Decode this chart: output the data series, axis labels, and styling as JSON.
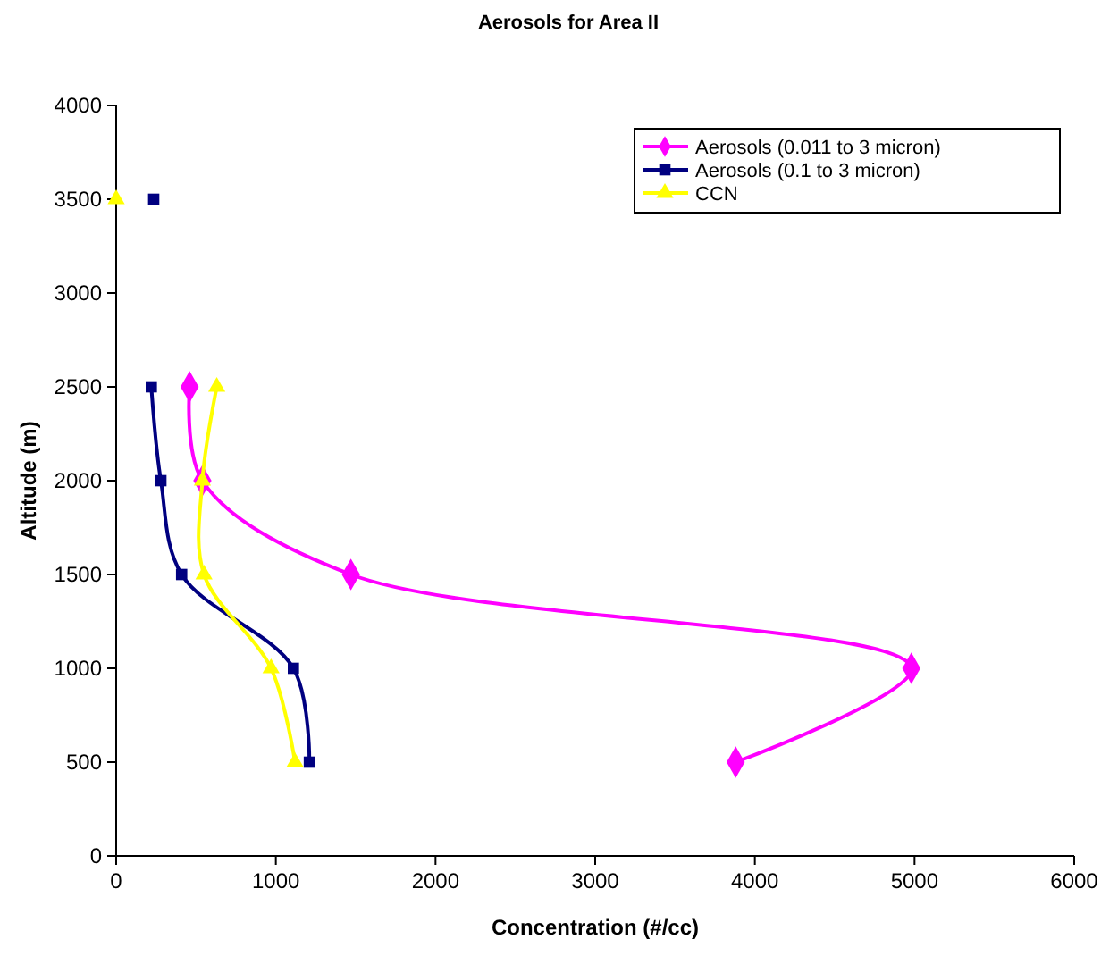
{
  "chart_data": {
    "type": "line",
    "title": "Aerosols for Area II",
    "xlabel": "Concentration (#/cc)",
    "ylabel": "Altitude (m)",
    "xlim": [
      0,
      6000
    ],
    "xticks": [
      0,
      1000,
      2000,
      3000,
      4000,
      5000,
      6000
    ],
    "ylim": [
      0,
      4000
    ],
    "yticks": [
      0,
      500,
      1000,
      1500,
      2000,
      2500,
      3000,
      3500,
      4000
    ],
    "grid": false,
    "legend": "top right",
    "series": [
      {
        "name": "Aerosols (0.011 to 3 micron)",
        "color": "#ff00ff",
        "marker": "diamond",
        "x": [
          3880,
          4980,
          1470,
          540,
          460
        ],
        "values": [
          500,
          1000,
          1500,
          2000,
          2500
        ]
      },
      {
        "name": "Aerosols (0.1 to 3 micron)",
        "color": "#000080",
        "marker": "square",
        "x": [
          1210,
          1110,
          410,
          280,
          220,
          null,
          235
        ],
        "values": [
          500,
          1000,
          1500,
          2000,
          2500,
          null,
          3500
        ]
      },
      {
        "name": "CCN",
        "color": "#ffff00",
        "marker": "triangle",
        "x": [
          1120,
          970,
          550,
          540,
          630,
          null,
          0
        ],
        "values": [
          500,
          1000,
          1500,
          2000,
          2500,
          null,
          3500
        ]
      }
    ]
  }
}
